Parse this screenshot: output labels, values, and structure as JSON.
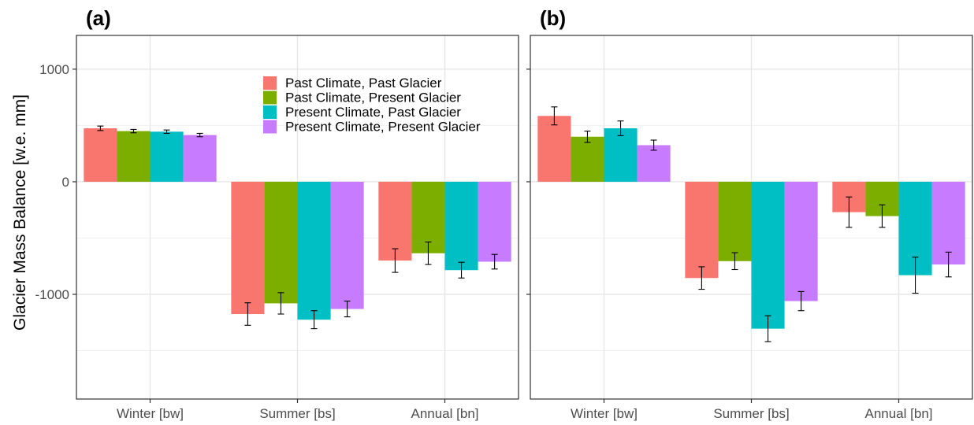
{
  "figure": {
    "ylabel": "Glacier Mass Balance [w.e. mm]",
    "legend_position": "top-right inside panel (a)"
  },
  "chart_data": [
    {
      "type": "bar",
      "panel_label": "(a)",
      "categories": [
        "Winter [bw]",
        "Summer [bs]",
        "Annual [bn]"
      ],
      "ylim": [
        -1930,
        1300
      ],
      "yticks": [
        -1000,
        0,
        1000
      ],
      "grid": true,
      "legend": true,
      "series": [
        {
          "name": "Past Climate, Past Glacier",
          "color": "#F8766D",
          "values": [
            475,
            -1175,
            -700
          ],
          "errors": [
            20,
            100,
            105
          ]
        },
        {
          "name": "Past Climate, Present Glacier",
          "color": "#7CAE00",
          "values": [
            450,
            -1080,
            -635
          ],
          "errors": [
            15,
            95,
            100
          ]
        },
        {
          "name": "Present Climate, Past Glacier",
          "color": "#00BFC4",
          "values": [
            445,
            -1225,
            -785
          ],
          "errors": [
            15,
            80,
            70
          ]
        },
        {
          "name": "Present Climate, Present Glacier",
          "color": "#C77CFF",
          "values": [
            415,
            -1130,
            -710
          ],
          "errors": [
            15,
            70,
            65
          ]
        }
      ]
    },
    {
      "type": "bar",
      "panel_label": "(b)",
      "categories": [
        "Winter [bw]",
        "Summer [bs]",
        "Annual [bn]"
      ],
      "ylim": [
        -1930,
        1300
      ],
      "yticks": [
        -1000,
        0,
        1000
      ],
      "grid": true,
      "legend": false,
      "series": [
        {
          "name": "Past Climate, Past Glacier",
          "color": "#F8766D",
          "values": [
            585,
            -855,
            -270
          ],
          "errors": [
            80,
            100,
            135
          ]
        },
        {
          "name": "Past Climate, Present Glacier",
          "color": "#7CAE00",
          "values": [
            400,
            -705,
            -305
          ],
          "errors": [
            50,
            75,
            100
          ]
        },
        {
          "name": "Present Climate, Past Glacier",
          "color": "#00BFC4",
          "values": [
            475,
            -1305,
            -830
          ],
          "errors": [
            65,
            115,
            160
          ]
        },
        {
          "name": "Present Climate, Present Glacier",
          "color": "#C77CFF",
          "values": [
            325,
            -1060,
            -735
          ],
          "errors": [
            45,
            85,
            110
          ]
        }
      ]
    }
  ]
}
